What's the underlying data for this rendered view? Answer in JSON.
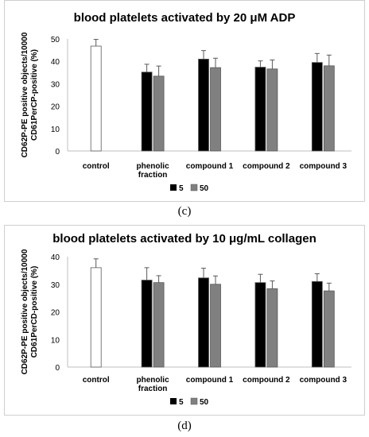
{
  "colors": {
    "control": "#ffffff",
    "dose_5": "#000000",
    "dose_50": "#808080",
    "axis": "#bfbfbf",
    "outline": "#595959"
  },
  "chart_data": [
    {
      "type": "bar",
      "panel_label": "(c)",
      "title": "blood platelets activated by 20 μM ADP",
      "ylabel_line1": "CD62P-PE positive objects/10000",
      "ylabel_line2": "CD61PerCP-positive (%)",
      "ylim": [
        0,
        50
      ],
      "yticks": [
        "0",
        "10",
        "20",
        "30",
        "40",
        "50"
      ],
      "categories": [
        "control",
        "phenolic fraction",
        "compound 1",
        "compound 2",
        "compound 3"
      ],
      "category_lines": [
        [
          "control"
        ],
        [
          "phenolic",
          "fraction"
        ],
        [
          "compound 1"
        ],
        [
          "compound 2"
        ],
        [
          "compound 3"
        ]
      ],
      "series": [
        {
          "name": "control",
          "values": [
            46.8,
            null,
            null,
            null,
            null
          ],
          "errors": [
            3,
            null,
            null,
            null,
            null
          ]
        },
        {
          "name": "5",
          "values": [
            null,
            35.2,
            41.0,
            37.4,
            39.5
          ],
          "errors": [
            null,
            3.5,
            3.8,
            2.8,
            4.0
          ]
        },
        {
          "name": "50",
          "values": [
            null,
            33.4,
            37.2,
            36.6,
            38.0
          ],
          "errors": [
            null,
            4.5,
            4.2,
            4.0,
            4.8
          ]
        }
      ],
      "legend": [
        "5",
        "50"
      ],
      "legend_position": "bottom",
      "grid": false
    },
    {
      "type": "bar",
      "panel_label": "(d)",
      "title": "blood platelets activated by 10 μg/mL collagen",
      "ylabel_line1": "CD62P-PE positive objects/10000",
      "ylabel_line2": "CD61PerCD-positive (%)",
      "ylim": [
        0,
        40
      ],
      "yticks": [
        "0",
        "10",
        "20",
        "30",
        "40"
      ],
      "categories": [
        "control",
        "phenolic fraction",
        "compound 1",
        "compound 2",
        "compound 3"
      ],
      "category_lines": [
        [
          "control"
        ],
        [
          "phenolic",
          "fraction"
        ],
        [
          "compound 1"
        ],
        [
          "compound 2"
        ],
        [
          "compound 3"
        ]
      ],
      "series": [
        {
          "name": "control",
          "values": [
            36.0,
            null,
            null,
            null,
            null
          ],
          "errors": [
            3.2,
            null,
            null,
            null,
            null
          ]
        },
        {
          "name": "5",
          "values": [
            null,
            31.5,
            32.3,
            30.6,
            31.0
          ],
          "errors": [
            null,
            4.5,
            3.5,
            3.0,
            2.8
          ]
        },
        {
          "name": "50",
          "values": [
            null,
            30.6,
            30.0,
            28.4,
            27.6
          ],
          "errors": [
            null,
            2.5,
            3.0,
            2.8,
            2.8
          ]
        }
      ],
      "legend": [
        "5",
        "50"
      ],
      "legend_position": "bottom",
      "grid": false
    }
  ]
}
